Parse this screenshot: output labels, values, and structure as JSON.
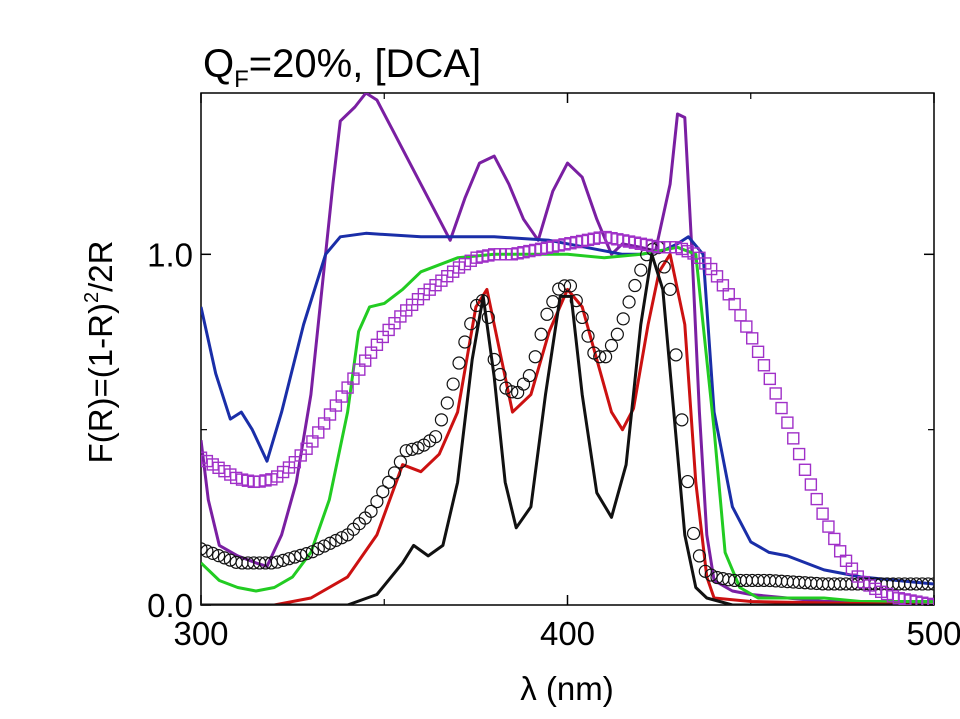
{
  "chart_data": {
    "type": "line",
    "title_main": "Q",
    "title_sub": "F",
    "title_rest": "=20%, [DCA]",
    "xlabel": "λ  (nm)",
    "ylabel_main": "F(R)=(1-R)",
    "ylabel_sup": "2",
    "ylabel_rest": "/2R",
    "xlim": [
      300,
      500
    ],
    "ylim": [
      0,
      1.46
    ],
    "x_ticks": [
      {
        "value": 300,
        "label": "300"
      },
      {
        "value": 400,
        "label": "400"
      },
      {
        "value": 500,
        "label": "500"
      }
    ],
    "y_ticks": [
      {
        "value": 0,
        "label": "0.0"
      },
      {
        "value": 1.0,
        "label": "1.0"
      }
    ],
    "grid": false,
    "legend": "none",
    "series": [
      {
        "color": "#7a1fa2",
        "style": "line",
        "points": [
          [
            300,
            0.47
          ],
          [
            302,
            0.3
          ],
          [
            305,
            0.17
          ],
          [
            310,
            0.14
          ],
          [
            315,
            0.12
          ],
          [
            318,
            0.11
          ],
          [
            322,
            0.2
          ],
          [
            326,
            0.35
          ],
          [
            330,
            0.6
          ],
          [
            333,
            0.9
          ],
          [
            336,
            1.2
          ],
          [
            338,
            1.38
          ],
          [
            342,
            1.42
          ],
          [
            345,
            1.46
          ],
          [
            348,
            1.44
          ],
          [
            352,
            1.36
          ],
          [
            356,
            1.28
          ],
          [
            360,
            1.2
          ],
          [
            365,
            1.1
          ],
          [
            368,
            1.04
          ],
          [
            372,
            1.16
          ],
          [
            376,
            1.26
          ],
          [
            380,
            1.28
          ],
          [
            384,
            1.2
          ],
          [
            388,
            1.1
          ],
          [
            392,
            1.04
          ],
          [
            396,
            1.18
          ],
          [
            400,
            1.26
          ],
          [
            404,
            1.22
          ],
          [
            408,
            1.1
          ],
          [
            412,
            1.0
          ],
          [
            415,
            1.03
          ],
          [
            420,
            1.02
          ],
          [
            424,
            1.01
          ],
          [
            428,
            1.2
          ],
          [
            430,
            1.4
          ],
          [
            432,
            1.39
          ],
          [
            434,
            1.0
          ],
          [
            436,
            0.55
          ],
          [
            438,
            0.2
          ],
          [
            440,
            0.07
          ],
          [
            445,
            0.04
          ],
          [
            450,
            0.03
          ],
          [
            460,
            0.02
          ],
          [
            470,
            0.01
          ],
          [
            480,
            0.01
          ],
          [
            490,
            0.0
          ],
          [
            500,
            0.0
          ]
        ]
      },
      {
        "color": "#1a2ea8",
        "style": "line",
        "points": [
          [
            300,
            0.85
          ],
          [
            304,
            0.66
          ],
          [
            308,
            0.53
          ],
          [
            311,
            0.55
          ],
          [
            314,
            0.5
          ],
          [
            318,
            0.41
          ],
          [
            322,
            0.55
          ],
          [
            328,
            0.8
          ],
          [
            334,
            1.0
          ],
          [
            338,
            1.05
          ],
          [
            345,
            1.06
          ],
          [
            360,
            1.05
          ],
          [
            380,
            1.05
          ],
          [
            395,
            1.04
          ],
          [
            405,
            1.02
          ],
          [
            415,
            1.0
          ],
          [
            420,
            1.0
          ],
          [
            426,
            1.01
          ],
          [
            430,
            1.03
          ],
          [
            433,
            1.05
          ],
          [
            437,
            1.0
          ],
          [
            440,
            0.55
          ],
          [
            445,
            0.28
          ],
          [
            450,
            0.18
          ],
          [
            455,
            0.15
          ],
          [
            460,
            0.14
          ],
          [
            465,
            0.12
          ],
          [
            470,
            0.1
          ],
          [
            480,
            0.08
          ],
          [
            490,
            0.07
          ],
          [
            500,
            0.06
          ]
        ]
      },
      {
        "color": "#22cc22",
        "style": "line",
        "points": [
          [
            300,
            0.12
          ],
          [
            305,
            0.07
          ],
          [
            310,
            0.05
          ],
          [
            315,
            0.04
          ],
          [
            320,
            0.05
          ],
          [
            325,
            0.08
          ],
          [
            330,
            0.15
          ],
          [
            335,
            0.3
          ],
          [
            340,
            0.55
          ],
          [
            343,
            0.78
          ],
          [
            346,
            0.85
          ],
          [
            350,
            0.86
          ],
          [
            355,
            0.9
          ],
          [
            360,
            0.95
          ],
          [
            370,
            0.99
          ],
          [
            380,
            1.0
          ],
          [
            390,
            1.0
          ],
          [
            400,
            1.0
          ],
          [
            410,
            0.99
          ],
          [
            420,
            1.0
          ],
          [
            430,
            1.02
          ],
          [
            435,
            1.0
          ],
          [
            440,
            0.5
          ],
          [
            443,
            0.15
          ],
          [
            447,
            0.05
          ],
          [
            452,
            0.02
          ],
          [
            460,
            0.02
          ],
          [
            470,
            0.02
          ],
          [
            480,
            0.01
          ],
          [
            490,
            0.01
          ],
          [
            500,
            0.01
          ]
        ]
      },
      {
        "color": "#cc1111",
        "style": "line",
        "points": [
          [
            300,
            0.0
          ],
          [
            320,
            0.0
          ],
          [
            330,
            0.02
          ],
          [
            340,
            0.08
          ],
          [
            348,
            0.2
          ],
          [
            355,
            0.4
          ],
          [
            360,
            0.38
          ],
          [
            365,
            0.43
          ],
          [
            370,
            0.55
          ],
          [
            375,
            0.85
          ],
          [
            378,
            0.9
          ],
          [
            382,
            0.7
          ],
          [
            385,
            0.55
          ],
          [
            390,
            0.6
          ],
          [
            395,
            0.78
          ],
          [
            400,
            0.9
          ],
          [
            404,
            0.85
          ],
          [
            408,
            0.7
          ],
          [
            412,
            0.55
          ],
          [
            415,
            0.5
          ],
          [
            418,
            0.56
          ],
          [
            422,
            0.8
          ],
          [
            425,
            0.95
          ],
          [
            428,
            1.0
          ],
          [
            432,
            0.8
          ],
          [
            435,
            0.35
          ],
          [
            438,
            0.08
          ],
          [
            440,
            0.02
          ],
          [
            450,
            0.01
          ],
          [
            500,
            0.0
          ]
        ]
      },
      {
        "color": "#111111",
        "style": "line",
        "points": [
          [
            300,
            0.0
          ],
          [
            340,
            0.0
          ],
          [
            348,
            0.03
          ],
          [
            355,
            0.12
          ],
          [
            358,
            0.17
          ],
          [
            362,
            0.14
          ],
          [
            366,
            0.17
          ],
          [
            370,
            0.35
          ],
          [
            374,
            0.7
          ],
          [
            377,
            0.88
          ],
          [
            380,
            0.65
          ],
          [
            383,
            0.35
          ],
          [
            386,
            0.22
          ],
          [
            390,
            0.28
          ],
          [
            394,
            0.6
          ],
          [
            398,
            0.88
          ],
          [
            401,
            0.88
          ],
          [
            404,
            0.6
          ],
          [
            408,
            0.32
          ],
          [
            412,
            0.25
          ],
          [
            416,
            0.4
          ],
          [
            420,
            0.8
          ],
          [
            423,
            1.0
          ],
          [
            426,
            0.9
          ],
          [
            429,
            0.55
          ],
          [
            432,
            0.2
          ],
          [
            435,
            0.05
          ],
          [
            438,
            0.02
          ],
          [
            445,
            0.0
          ],
          [
            500,
            0.0
          ]
        ]
      },
      {
        "color": "#111111",
        "style": "circles",
        "step": 1.6,
        "points": [
          [
            300,
            0.16
          ],
          [
            305,
            0.14
          ],
          [
            310,
            0.12
          ],
          [
            320,
            0.12
          ],
          [
            330,
            0.15
          ],
          [
            340,
            0.2
          ],
          [
            346,
            0.26
          ],
          [
            350,
            0.33
          ],
          [
            353,
            0.38
          ],
          [
            356,
            0.44
          ],
          [
            360,
            0.45
          ],
          [
            364,
            0.48
          ],
          [
            368,
            0.6
          ],
          [
            372,
            0.75
          ],
          [
            376,
            0.88
          ],
          [
            378,
            0.85
          ],
          [
            380,
            0.7
          ],
          [
            383,
            0.62
          ],
          [
            386,
            0.6
          ],
          [
            390,
            0.66
          ],
          [
            394,
            0.82
          ],
          [
            398,
            0.91
          ],
          [
            401,
            0.91
          ],
          [
            404,
            0.82
          ],
          [
            407,
            0.72
          ],
          [
            410,
            0.7
          ],
          [
            414,
            0.78
          ],
          [
            418,
            0.9
          ],
          [
            422,
            1.01
          ],
          [
            425,
            1.02
          ],
          [
            428,
            0.9
          ],
          [
            431,
            0.55
          ],
          [
            434,
            0.22
          ],
          [
            437,
            0.1
          ],
          [
            440,
            0.08
          ],
          [
            445,
            0.07
          ],
          [
            455,
            0.07
          ],
          [
            470,
            0.06
          ],
          [
            485,
            0.06
          ],
          [
            500,
            0.06
          ]
        ]
      },
      {
        "color": "#a030c8",
        "style": "squares",
        "step": 1.6,
        "points": [
          [
            300,
            0.42
          ],
          [
            305,
            0.39
          ],
          [
            310,
            0.36
          ],
          [
            315,
            0.35
          ],
          [
            320,
            0.36
          ],
          [
            325,
            0.4
          ],
          [
            330,
            0.46
          ],
          [
            335,
            0.54
          ],
          [
            340,
            0.62
          ],
          [
            345,
            0.7
          ],
          [
            350,
            0.77
          ],
          [
            355,
            0.83
          ],
          [
            360,
            0.88
          ],
          [
            365,
            0.92
          ],
          [
            370,
            0.96
          ],
          [
            375,
            0.99
          ],
          [
            380,
            1.0
          ],
          [
            385,
            1.0
          ],
          [
            390,
            1.01
          ],
          [
            395,
            1.02
          ],
          [
            400,
            1.03
          ],
          [
            405,
            1.04
          ],
          [
            410,
            1.05
          ],
          [
            415,
            1.04
          ],
          [
            420,
            1.03
          ],
          [
            425,
            1.02
          ],
          [
            430,
            1.02
          ],
          [
            435,
            1.0
          ],
          [
            440,
            0.95
          ],
          [
            445,
            0.87
          ],
          [
            450,
            0.77
          ],
          [
            455,
            0.65
          ],
          [
            460,
            0.52
          ],
          [
            465,
            0.38
          ],
          [
            470,
            0.25
          ],
          [
            475,
            0.14
          ],
          [
            480,
            0.07
          ],
          [
            485,
            0.04
          ],
          [
            490,
            0.02
          ],
          [
            495,
            0.01
          ],
          [
            500,
            0.0
          ]
        ]
      }
    ]
  }
}
